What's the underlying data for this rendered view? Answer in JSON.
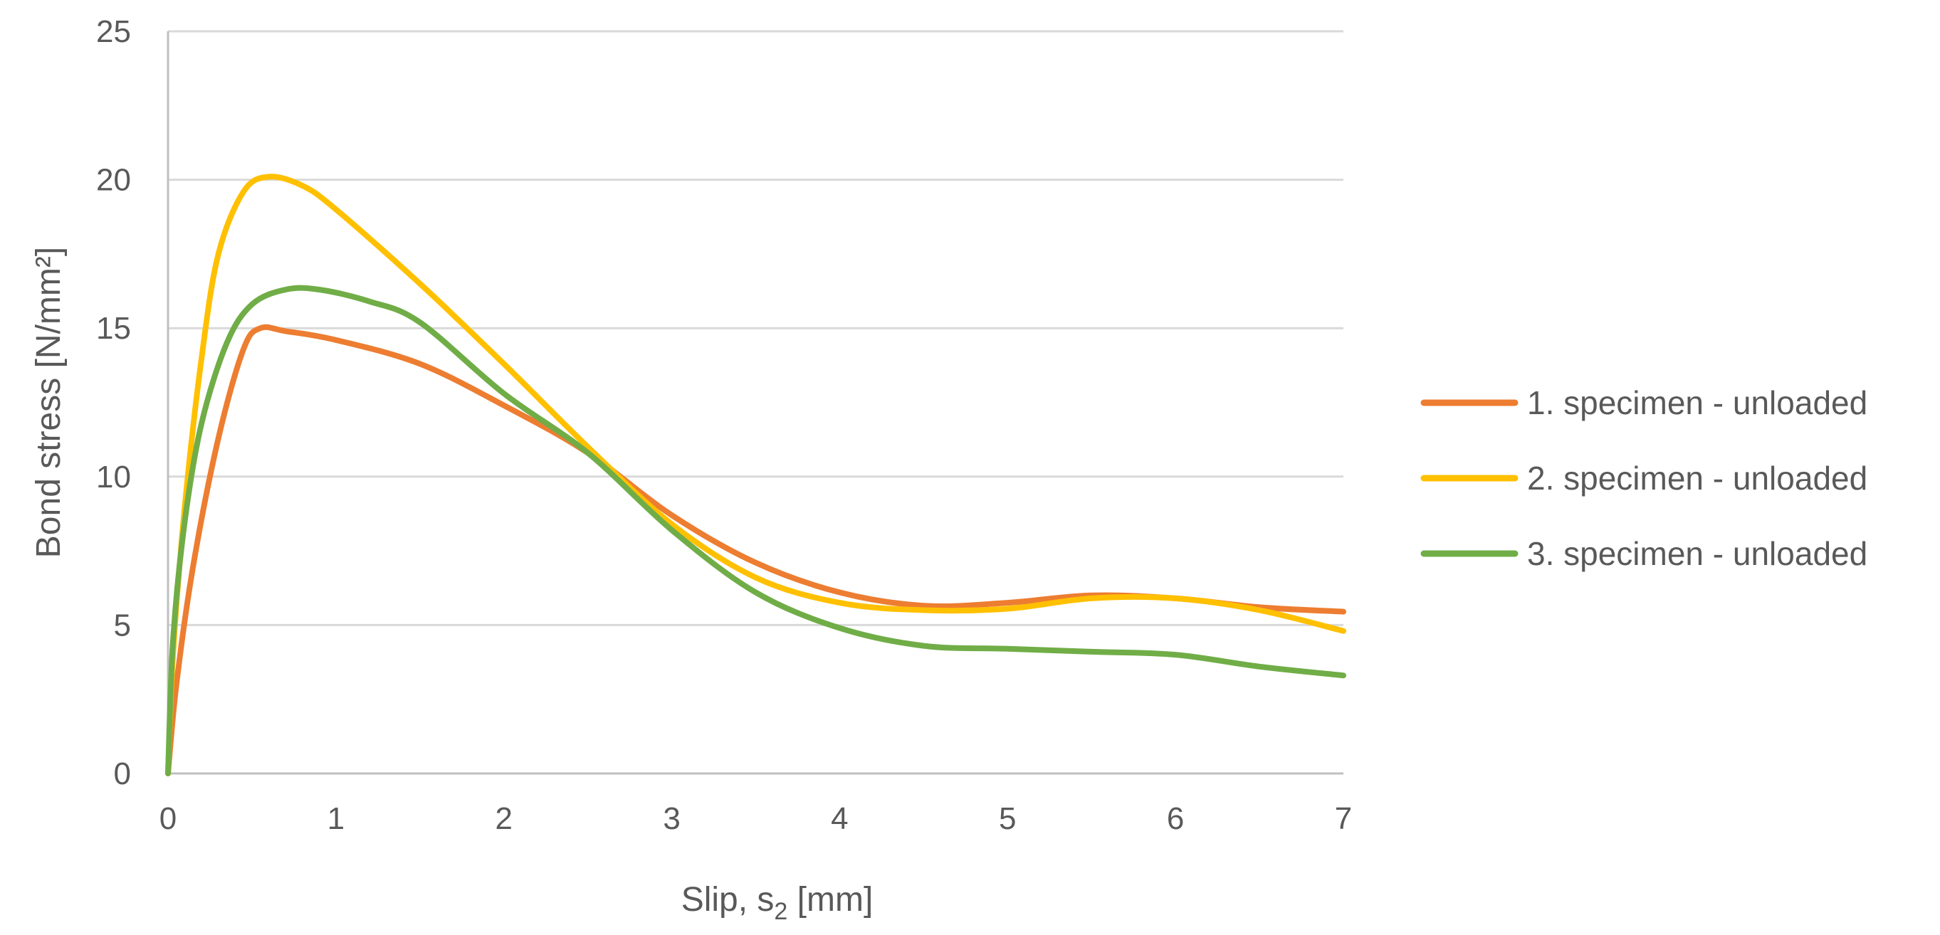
{
  "chart_data": {
    "type": "line",
    "title": "",
    "xlabel": "Slip, s2 [mm]",
    "xlabel_main": "Slip, s",
    "xlabel_sub": "2",
    "xlabel_unit": " [mm]",
    "ylabel": "Bond stress [N/mm²]",
    "xlim": [
      0,
      7
    ],
    "ylim": [
      0,
      25
    ],
    "xticks": [
      0,
      1,
      2,
      3,
      4,
      5,
      6,
      7
    ],
    "yticks": [
      0,
      5,
      10,
      15,
      20,
      25
    ],
    "grid": "horizontal",
    "legend_position": "right",
    "series": [
      {
        "name": "1. specimen - unloaded",
        "color": "#ED7D31",
        "points": [
          [
            0,
            0
          ],
          [
            0.05,
            3
          ],
          [
            0.15,
            7
          ],
          [
            0.3,
            11.3
          ],
          [
            0.45,
            14.3
          ],
          [
            0.55,
            15
          ],
          [
            0.7,
            14.9
          ],
          [
            1.0,
            14.6
          ],
          [
            1.5,
            13.8
          ],
          [
            2.0,
            12.4
          ],
          [
            2.5,
            10.8
          ],
          [
            3.0,
            8.7
          ],
          [
            3.5,
            7.1
          ],
          [
            4.0,
            6.1
          ],
          [
            4.5,
            5.65
          ],
          [
            5.0,
            5.75
          ],
          [
            5.5,
            6.0
          ],
          [
            6.0,
            5.9
          ],
          [
            6.5,
            5.6
          ],
          [
            7.0,
            5.45
          ]
        ]
      },
      {
        "name": "2. specimen - unloaded",
        "color": "#FFC000",
        "points": [
          [
            0,
            0
          ],
          [
            0.03,
            4
          ],
          [
            0.1,
            9
          ],
          [
            0.2,
            14
          ],
          [
            0.3,
            17.5
          ],
          [
            0.45,
            19.6
          ],
          [
            0.6,
            20.1
          ],
          [
            0.8,
            19.8
          ],
          [
            1.0,
            19
          ],
          [
            1.5,
            16.5
          ],
          [
            2.0,
            13.8
          ],
          [
            2.5,
            11
          ],
          [
            3.0,
            8.4
          ],
          [
            3.5,
            6.6
          ],
          [
            4.0,
            5.75
          ],
          [
            4.5,
            5.5
          ],
          [
            5.0,
            5.55
          ],
          [
            5.5,
            5.9
          ],
          [
            6.0,
            5.9
          ],
          [
            6.5,
            5.5
          ],
          [
            7.0,
            4.8
          ]
        ]
      },
      {
        "name": "3. specimen - unloaded",
        "color": "#70AD47",
        "points": [
          [
            0,
            0
          ],
          [
            0.03,
            4.5
          ],
          [
            0.1,
            8.5
          ],
          [
            0.2,
            11.8
          ],
          [
            0.35,
            14.5
          ],
          [
            0.5,
            15.8
          ],
          [
            0.7,
            16.3
          ],
          [
            0.9,
            16.3
          ],
          [
            1.2,
            15.9
          ],
          [
            1.5,
            15.2
          ],
          [
            2.0,
            12.8
          ],
          [
            2.5,
            10.8
          ],
          [
            3.0,
            8.2
          ],
          [
            3.5,
            6.1
          ],
          [
            4.0,
            4.9
          ],
          [
            4.5,
            4.3
          ],
          [
            5.0,
            4.2
          ],
          [
            5.5,
            4.1
          ],
          [
            6.0,
            4.0
          ],
          [
            6.5,
            3.6
          ],
          [
            7.0,
            3.3
          ]
        ]
      }
    ]
  }
}
